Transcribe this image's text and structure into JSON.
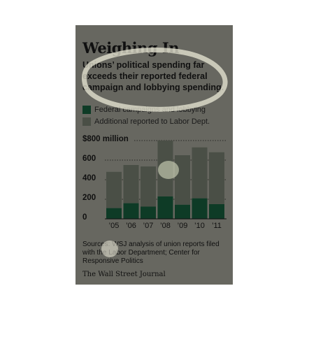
{
  "chart_data": {
    "type": "bar",
    "stacked": true,
    "title": "Weighing In",
    "subtitle": "Unions’ political spending far exceeds their reported federal campaign and lobbying spending.",
    "categories": [
      "’05",
      "’06",
      "’07",
      "’08",
      "’09",
      "’10",
      "’11"
    ],
    "series": [
      {
        "name": "Federal campaigns and lobbying",
        "color": "#0e3b26",
        "values": [
          110,
          160,
          125,
          230,
          145,
          210,
          150
        ]
      },
      {
        "name": "Additional reported to Labor Dept.",
        "color": "#4a4f46",
        "values": [
          370,
          390,
          410,
          570,
          505,
          520,
          530
        ]
      }
    ],
    "yticks": [
      {
        "value": 0,
        "label": "0"
      },
      {
        "value": 200,
        "label": "200"
      },
      {
        "value": 400,
        "label": "400"
      },
      {
        "value": 600,
        "label": "600"
      },
      {
        "value": 800,
        "label": "$800 million"
      }
    ],
    "ylim": [
      0,
      800
    ],
    "grid": "dotted",
    "legend_position": "top-left",
    "source": "Sources: WSJ analysis of union reports filed with the Labor Department; Center for Responsive Politics",
    "credit": "The Wall Street Journal"
  }
}
